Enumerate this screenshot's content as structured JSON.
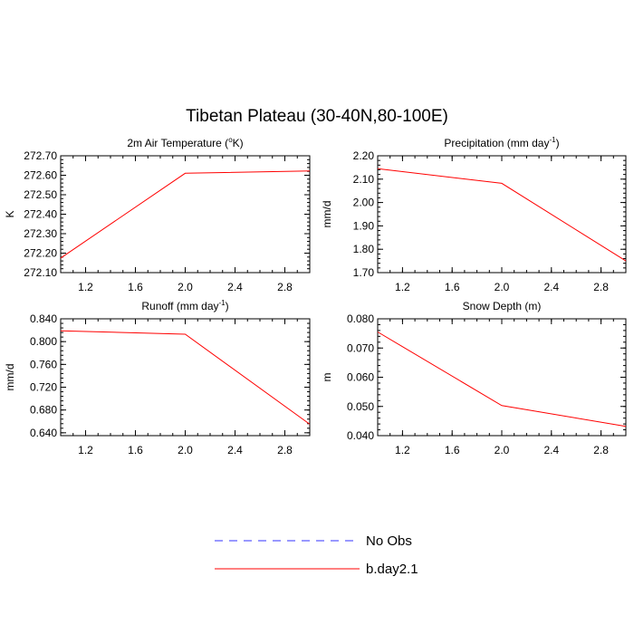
{
  "title": "Tibetan Plateau (30-40N,80-100E)",
  "colors": {
    "no_obs": "#3333ff",
    "model": "#ff0000",
    "axis": "#000000"
  },
  "chart_data": [
    {
      "type": "line",
      "title": "2m Air Temperature (",
      "title_sup": "o",
      "title_tail": "K)",
      "ylabel": "K",
      "xlabel": "",
      "xlim": [
        1,
        3
      ],
      "ylim": [
        272.1,
        272.7
      ],
      "xticks": [
        1.2,
        1.6,
        2.0,
        2.4,
        2.8
      ],
      "xtick_labels": [
        "1.2",
        "1.6",
        "2.0",
        "2.4",
        "2.8"
      ],
      "yticks": [
        272.1,
        272.2,
        272.3,
        272.4,
        272.5,
        272.6,
        272.7
      ],
      "ytick_labels": [
        "272.10",
        "272.20",
        "272.30",
        "272.40",
        "272.50",
        "272.60",
        "272.70"
      ],
      "series": [
        {
          "name": "b.day2.1",
          "x": [
            1,
            2,
            3
          ],
          "y": [
            272.175,
            272.61,
            272.622
          ]
        }
      ]
    },
    {
      "type": "line",
      "title": "Precipitation (mm day",
      "title_sup": "-1",
      "title_tail": ")",
      "ylabel": "mm/d",
      "xlabel": "",
      "xlim": [
        1,
        3
      ],
      "ylim": [
        1.7,
        2.2
      ],
      "xticks": [
        1.2,
        1.6,
        2.0,
        2.4,
        2.8
      ],
      "xtick_labels": [
        "1.2",
        "1.6",
        "2.0",
        "2.4",
        "2.8"
      ],
      "yticks": [
        1.7,
        1.8,
        1.9,
        2.0,
        2.1,
        2.2
      ],
      "ytick_labels": [
        "1.70",
        "1.80",
        "1.90",
        "2.00",
        "2.10",
        "2.20"
      ],
      "series": [
        {
          "name": "b.day2.1",
          "x": [
            1,
            2,
            3
          ],
          "y": [
            2.145,
            2.082,
            1.75
          ]
        }
      ]
    },
    {
      "type": "line",
      "title": "Runoff (mm day",
      "title_sup": "-1",
      "title_tail": ")",
      "ylabel": "mm/d",
      "xlabel": "",
      "xlim": [
        1,
        3
      ],
      "ylim": [
        0.635,
        0.84
      ],
      "xticks": [
        1.2,
        1.6,
        2.0,
        2.4,
        2.8
      ],
      "xtick_labels": [
        "1.2",
        "1.6",
        "2.0",
        "2.4",
        "2.8"
      ],
      "yticks": [
        0.64,
        0.68,
        0.72,
        0.76,
        0.8,
        0.84
      ],
      "ytick_labels": [
        "0.640",
        "0.680",
        "0.720",
        "0.760",
        "0.800",
        "0.840"
      ],
      "series": [
        {
          "name": "b.day2.1",
          "x": [
            1,
            2,
            3
          ],
          "y": [
            0.819,
            0.813,
            0.655
          ]
        }
      ]
    },
    {
      "type": "line",
      "title": "Snow Depth (m)",
      "title_sup": "",
      "title_tail": "",
      "ylabel": "m",
      "xlabel": "",
      "xlim": [
        1,
        3
      ],
      "ylim": [
        0.04,
        0.08
      ],
      "xticks": [
        1.2,
        1.6,
        2.0,
        2.4,
        2.8
      ],
      "xtick_labels": [
        "1.2",
        "1.6",
        "2.0",
        "2.4",
        "2.8"
      ],
      "yticks": [
        0.04,
        0.05,
        0.06,
        0.07,
        0.08
      ],
      "ytick_labels": [
        "0.040",
        "0.050",
        "0.060",
        "0.070",
        "0.080"
      ],
      "series": [
        {
          "name": "b.day2.1",
          "x": [
            1,
            2,
            3
          ],
          "y": [
            0.0755,
            0.0503,
            0.0432
          ]
        }
      ]
    }
  ],
  "legend": {
    "placement": "bottom-center",
    "items": [
      {
        "label": "No Obs",
        "style": "dashed",
        "color": "#3333ff"
      },
      {
        "label": "b.day2.1",
        "style": "solid",
        "color": "#ff0000"
      }
    ]
  }
}
